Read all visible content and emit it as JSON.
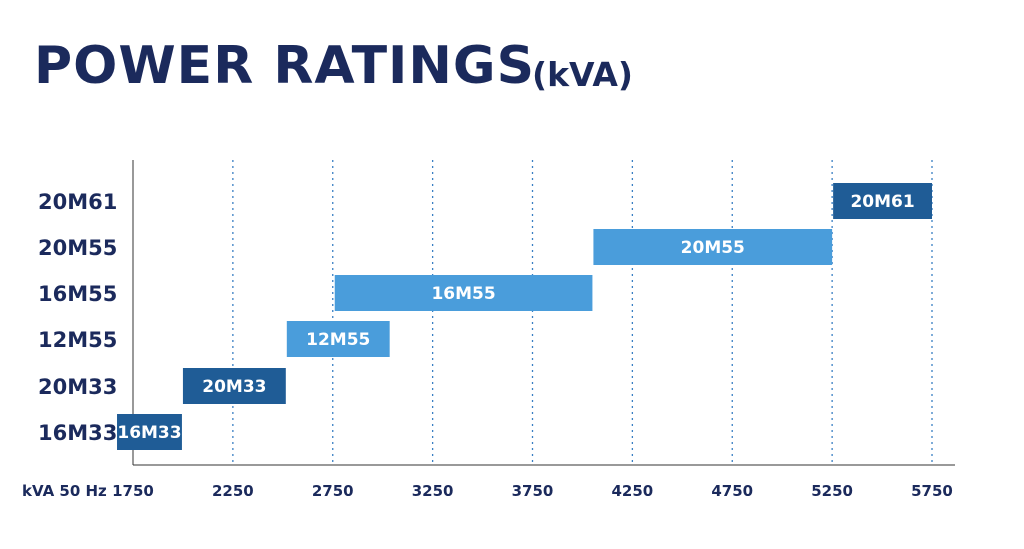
{
  "title": "POWER RATINGS",
  "subtitle": "(kVA)",
  "chart_data": {
    "type": "bar",
    "orientation": "horizontal-range",
    "title": "POWER RATINGS (kVA)",
    "xlabel": "kVA 50 Hz",
    "ylabel": "",
    "xlim": [
      1750,
      5900
    ],
    "x_ticks": [
      1750,
      2250,
      2750,
      3250,
      3750,
      4250,
      4750,
      5250,
      5750
    ],
    "grid": "vertical-dotted",
    "categories": [
      "16M33",
      "20M33",
      "12M55",
      "16M55",
      "20M55",
      "20M61"
    ],
    "ranges": [
      {
        "label": "16M33",
        "start": 1670,
        "end": 1995,
        "color": "#1f5c96"
      },
      {
        "label": "20M33",
        "start": 2000,
        "end": 2515,
        "color": "#1f5c96"
      },
      {
        "label": "12M55",
        "start": 2520,
        "end": 3035,
        "color": "#4a9ddb"
      },
      {
        "label": "16M55",
        "start": 2760,
        "end": 4050,
        "color": "#4a9ddb"
      },
      {
        "label": "20M55",
        "start": 4055,
        "end": 5250,
        "color": "#4a9ddb"
      },
      {
        "label": "20M61",
        "start": 5255,
        "end": 5750,
        "color": "#1f5c96"
      }
    ]
  }
}
